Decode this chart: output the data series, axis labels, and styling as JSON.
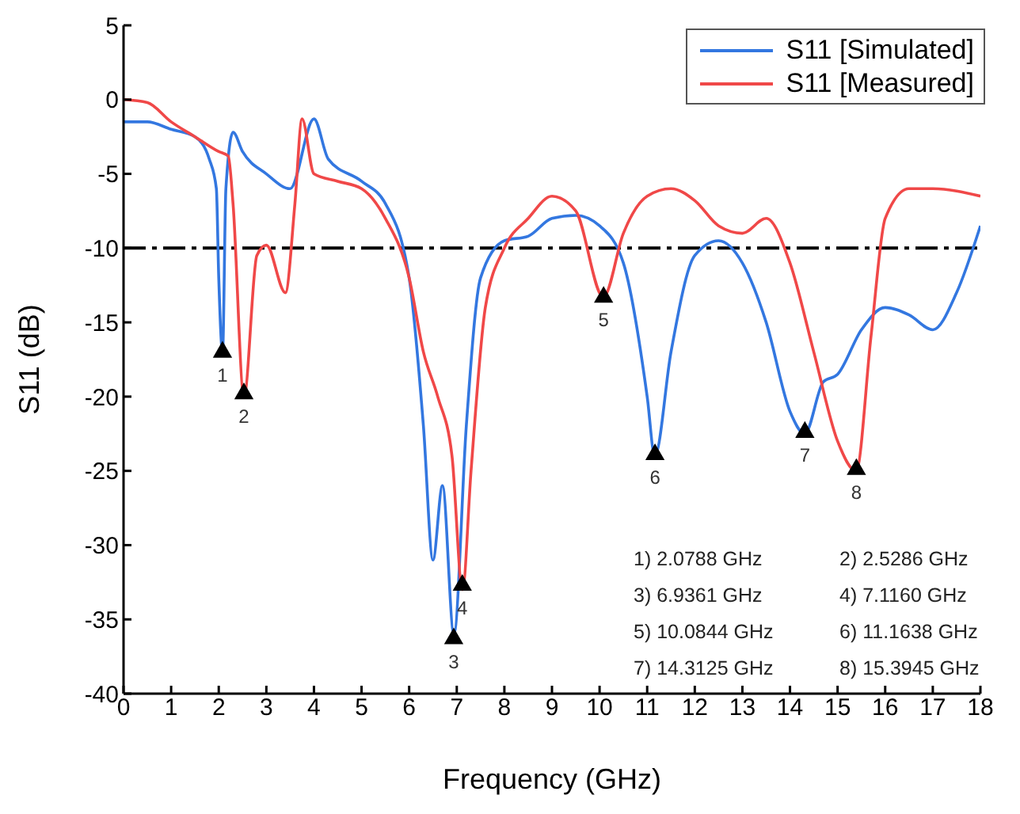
{
  "chart_data": {
    "type": "line",
    "xlabel": "Frequency (GHz)",
    "ylabel": "S11 (dB)",
    "xlim": [
      0,
      18
    ],
    "xticks": [
      0,
      1,
      2,
      3,
      4,
      5,
      6,
      7,
      8,
      9,
      10,
      11,
      12,
      13,
      14,
      15,
      16,
      17,
      18
    ],
    "ylim": [
      -40,
      5
    ],
    "yticks": [
      -40,
      -35,
      -30,
      -25,
      -20,
      -15,
      -10,
      -5,
      0,
      5
    ],
    "grid": false,
    "legend": "top right",
    "marker": "none",
    "line_style": "solid",
    "series": [
      {
        "name": "S11 [Simulated]",
        "color": "#3377e0",
        "x": [
          0,
          0.5,
          1,
          1.5,
          1.8,
          1.95,
          2.0,
          2.08,
          2.15,
          2.3,
          2.5,
          3,
          3.5,
          4,
          4.3,
          5,
          5.5,
          6,
          6.3,
          6.5,
          6.7,
          6.94,
          7.2,
          7.5,
          8,
          8.5,
          9,
          9.5,
          10,
          10.5,
          11,
          11.16,
          11.5,
          12,
          12.5,
          13,
          13.5,
          14,
          14.31,
          14.7,
          15,
          15.5,
          16,
          16.5,
          17,
          17.5,
          18
        ],
        "values": [
          -1.5,
          -1.5,
          -2,
          -2.5,
          -4,
          -6,
          -12,
          -17,
          -6,
          -2.2,
          -3.5,
          -5,
          -6,
          -1.3,
          -4,
          -5.5,
          -7,
          -12,
          -22,
          -31,
          -26,
          -36,
          -22,
          -12,
          -9.5,
          -9.2,
          -8,
          -7.8,
          -8.5,
          -11,
          -20,
          -24,
          -17,
          -10.5,
          -9.5,
          -11,
          -15,
          -21,
          -22.5,
          -19,
          -18.5,
          -15.5,
          -14,
          -14.5,
          -15.5,
          -13,
          -8.5
        ]
      },
      {
        "name": "S11 [Measured]",
        "color": "#f04848",
        "x": [
          0,
          0.5,
          1,
          1.5,
          2,
          2.2,
          2.3,
          2.53,
          2.8,
          3.0,
          3.4,
          3.6,
          3.75,
          4,
          4.5,
          5,
          5.5,
          6,
          6.3,
          6.6,
          6.9,
          7.12,
          7.3,
          7.6,
          8,
          8.5,
          9,
          9.5,
          10.08,
          10.5,
          11,
          11.5,
          12,
          12.5,
          13,
          13.5,
          14,
          14.5,
          15,
          15.39,
          15.7,
          16,
          16.5,
          17,
          18
        ],
        "values": [
          0,
          -0.2,
          -1.5,
          -2.5,
          -3.5,
          -3.8,
          -7,
          -20,
          -10.5,
          -9.8,
          -13,
          -7,
          -1.3,
          -5,
          -5.5,
          -6,
          -8,
          -12,
          -17,
          -20,
          -24,
          -33,
          -25,
          -14,
          -10,
          -8,
          -6.5,
          -7.5,
          -13.3,
          -9,
          -6.5,
          -6,
          -6.8,
          -8.5,
          -9,
          -8,
          -11,
          -17,
          -23,
          -25,
          -16,
          -8,
          -6,
          -6,
          -6.5
        ]
      },
      {
        "type": "scatter",
        "marker": "triangle",
        "color": "#000000",
        "x": [
          2.0788,
          2.5286,
          6.9361,
          7.116,
          10.0844,
          11.1638,
          14.3125,
          15.3945
        ],
        "values": [
          -17,
          -19.8,
          -36.3,
          -32.7,
          -13.3,
          -23.9,
          -22.4,
          -24.9
        ]
      }
    ],
    "ref_lines": [
      {
        "axis": "y",
        "value": -10,
        "color": "#000000",
        "line_style": "dashdot"
      }
    ],
    "annotations": [
      {
        "text": "1",
        "x": 2.0788,
        "y": -17
      },
      {
        "text": "2",
        "x": 2.5286,
        "y": -19.8
      },
      {
        "text": "3",
        "x": 6.9361,
        "y": -36.3
      },
      {
        "text": "4",
        "x": 7.116,
        "y": -32.7
      },
      {
        "text": "5",
        "x": 10.0844,
        "y": -13.3
      },
      {
        "text": "6",
        "x": 11.1638,
        "y": -23.9
      },
      {
        "text": "7",
        "x": 14.3125,
        "y": -22.4
      },
      {
        "text": "8",
        "x": 15.3945,
        "y": -24.9
      },
      "1) 2.0788 GHz",
      "2) 2.5286 GHz",
      "3) 6.9361 GHz",
      "4) 7.1160 GHz",
      "5) 10.0844 GHz",
      "6) 11.1638 GHz",
      "7) 14.3125 GHz",
      "8) 15.3945 GHz"
    ]
  }
}
